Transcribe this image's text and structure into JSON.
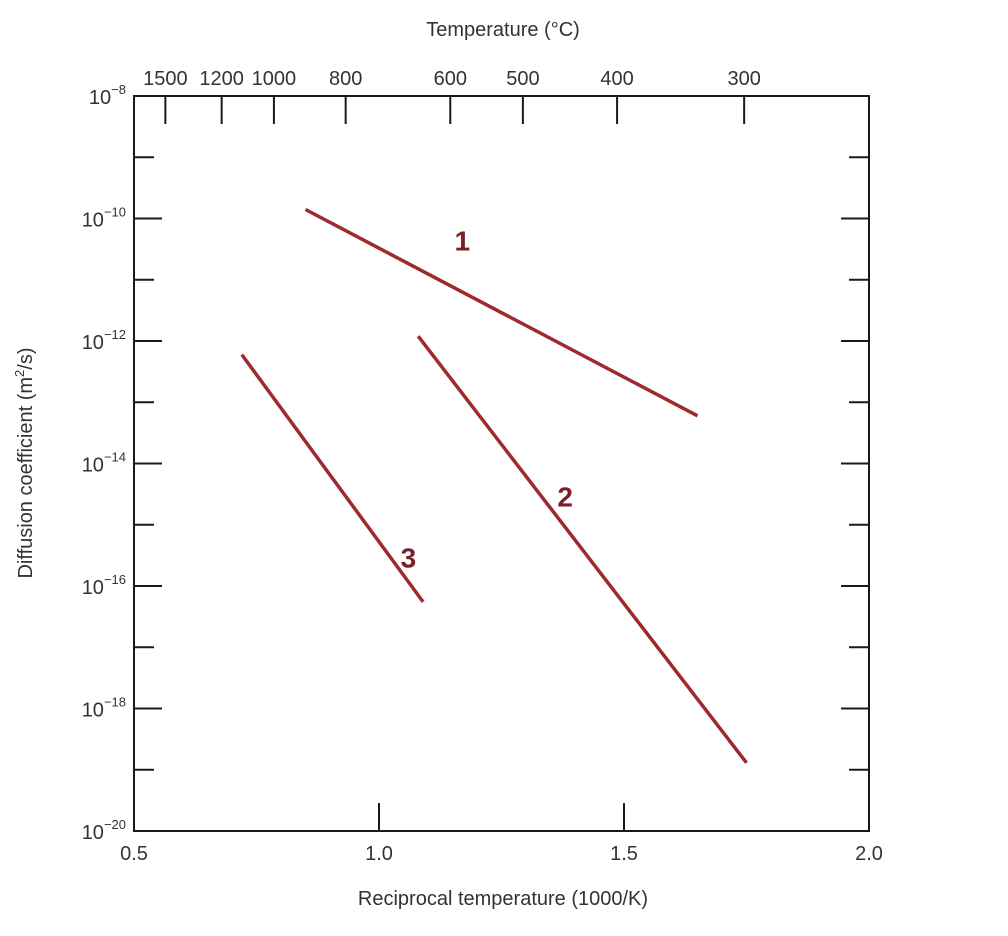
{
  "chart_data": {
    "type": "line",
    "title": "",
    "top_axis_label": "Temperature (°C)",
    "xlabel": "Reciprocal temperature (1000/K)",
    "ylabel": "Diffusion coefficient (m²/s)",
    "ylabel_parts": [
      "Diffusion coefficient (m",
      "2",
      "/s)"
    ],
    "xlim": [
      0.5,
      2.0
    ],
    "ylim": [
      1e-20,
      1e-08
    ],
    "yscale": "log",
    "grid": false,
    "legend": "none",
    "series_color": "#9e2a2f",
    "label_color": "#7a1f26",
    "x_ticks": [
      {
        "value": 0.5,
        "label": "0.5"
      },
      {
        "value": 1.0,
        "label": "1.0"
      },
      {
        "value": 1.5,
        "label": "1.5"
      },
      {
        "value": 2.0,
        "label": "2.0"
      }
    ],
    "y_ticks": [
      {
        "exp": -8,
        "base": "10",
        "power": "−8"
      },
      {
        "exp": -10,
        "base": "10",
        "power": "−10"
      },
      {
        "exp": -12,
        "base": "10",
        "power": "−12"
      },
      {
        "exp": -14,
        "base": "10",
        "power": "−14"
      },
      {
        "exp": -16,
        "base": "10",
        "power": "−16"
      },
      {
        "exp": -18,
        "base": "10",
        "power": "−18"
      },
      {
        "exp": -20,
        "base": "10",
        "power": "−20"
      }
    ],
    "top_ticks": [
      {
        "celsius": 1500,
        "label": "1500"
      },
      {
        "celsius": 1200,
        "label": "1200"
      },
      {
        "celsius": 1000,
        "label": "1000"
      },
      {
        "celsius": 800,
        "label": "800"
      },
      {
        "celsius": 600,
        "label": "600"
      },
      {
        "celsius": 500,
        "label": "500"
      },
      {
        "celsius": 400,
        "label": "400"
      },
      {
        "celsius": 300,
        "label": "300"
      }
    ],
    "series": [
      {
        "label": "1",
        "x": [
          0.85,
          1.65
        ],
        "y": [
          1.4e-10,
          6e-14
        ],
        "label_at": {
          "x": 1.17,
          "y": 3e-11
        }
      },
      {
        "label": "2",
        "x": [
          1.08,
          1.75
        ],
        "y": [
          1.2e-12,
          1.3e-19
        ],
        "label_at": {
          "x": 1.38,
          "y": 2e-15
        }
      },
      {
        "label": "3",
        "x": [
          0.72,
          1.09
        ],
        "y": [
          6e-13,
          5.5e-17
        ],
        "label_at": {
          "x": 1.06,
          "y": 2e-16
        }
      }
    ]
  }
}
